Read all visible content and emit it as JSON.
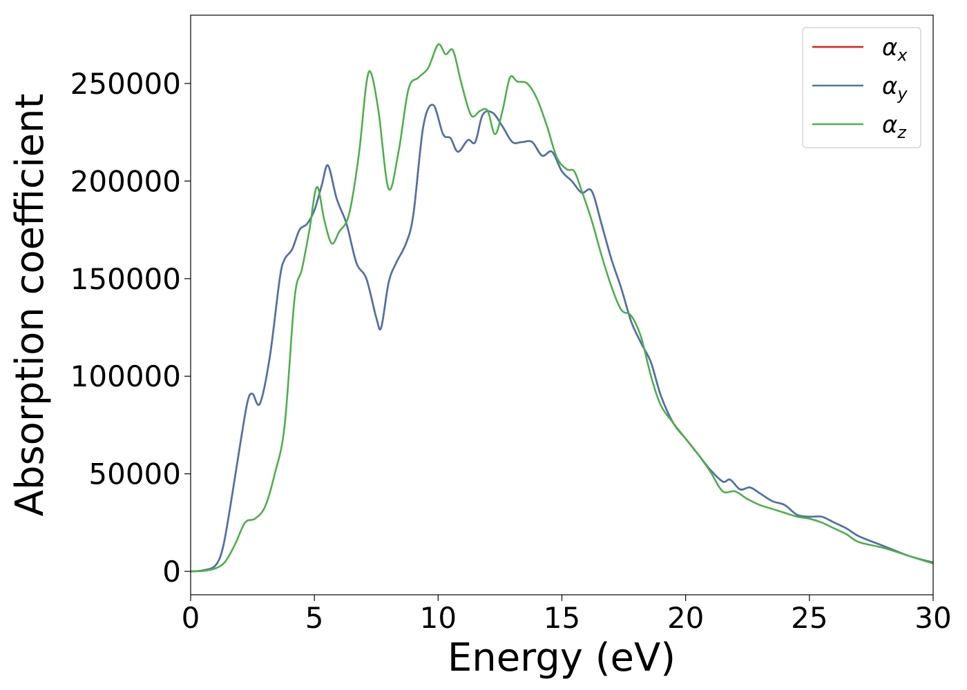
{
  "chart_data": {
    "type": "line",
    "xlabel": "Energy (eV)",
    "ylabel": "Absorption coefficient",
    "xlim": [
      0,
      30
    ],
    "ylim": [
      -12000,
      285000
    ],
    "x_ticks": [
      "0",
      "5",
      "10",
      "15",
      "20",
      "25",
      "30"
    ],
    "x_tick_values": [
      0,
      5,
      10,
      15,
      20,
      25,
      30
    ],
    "y_ticks": [
      "0",
      "50000",
      "100000",
      "150000",
      "200000",
      "250000"
    ],
    "y_tick_values": [
      0,
      50000,
      100000,
      150000,
      200000,
      250000
    ],
    "grid": false,
    "legend": {
      "placement": "top-right"
    },
    "series": [
      {
        "name": "α",
        "subscript": "x",
        "color": "#e41a1c",
        "x": [
          0,
          0.5,
          1.0,
          1.3,
          1.6,
          2.0,
          2.3,
          2.5,
          2.8,
          3.2,
          3.6,
          3.8,
          4.1,
          4.4,
          4.7,
          5.0,
          5.3,
          5.55,
          5.9,
          6.3,
          6.7,
          7.1,
          7.5,
          7.7,
          8.0,
          8.3,
          8.7,
          9.0,
          9.4,
          9.8,
          10.2,
          10.5,
          10.8,
          11.2,
          11.5,
          11.8,
          12.2,
          12.6,
          13.0,
          13.4,
          13.8,
          14.2,
          14.6,
          15.0,
          15.4,
          15.8,
          16.2,
          16.6,
          17.0,
          17.4,
          17.8,
          18.2,
          18.6,
          19.0,
          19.5,
          20.0,
          20.5,
          21.0,
          21.5,
          21.8,
          22.2,
          22.6,
          23.0,
          23.5,
          24.0,
          24.5,
          25.0,
          25.5,
          26.0,
          26.5,
          27.0,
          28.0,
          29.0,
          30.0
        ],
        "y": [
          0,
          500,
          3000,
          12000,
          33000,
          65000,
          87000,
          91000,
          86000,
          110000,
          150000,
          160000,
          165000,
          175000,
          178000,
          185000,
          198000,
          208000,
          191000,
          178000,
          158000,
          150000,
          130000,
          125000,
          148000,
          158000,
          168000,
          183000,
          228000,
          239000,
          224000,
          222000,
          215000,
          221000,
          220000,
          234000,
          235000,
          228000,
          220000,
          220000,
          220000,
          213000,
          215000,
          205000,
          200000,
          194000,
          195000,
          178000,
          160000,
          145000,
          128000,
          117000,
          107000,
          90000,
          76000,
          68000,
          60000,
          52000,
          46000,
          47000,
          42000,
          43000,
          40000,
          36000,
          34000,
          29000,
          28000,
          28000,
          25000,
          22000,
          18000,
          13000,
          8000,
          4500
        ]
      },
      {
        "name": "α",
        "subscript": "y",
        "color": "#4a74ad",
        "x": [
          0,
          0.5,
          1.0,
          1.3,
          1.6,
          2.0,
          2.3,
          2.5,
          2.8,
          3.2,
          3.6,
          3.8,
          4.1,
          4.4,
          4.7,
          5.0,
          5.3,
          5.55,
          5.9,
          6.3,
          6.7,
          7.1,
          7.5,
          7.7,
          8.0,
          8.3,
          8.7,
          9.0,
          9.4,
          9.8,
          10.2,
          10.5,
          10.8,
          11.2,
          11.5,
          11.8,
          12.2,
          12.6,
          13.0,
          13.4,
          13.8,
          14.2,
          14.6,
          15.0,
          15.4,
          15.8,
          16.2,
          16.6,
          17.0,
          17.4,
          17.8,
          18.2,
          18.6,
          19.0,
          19.5,
          20.0,
          20.5,
          21.0,
          21.5,
          21.8,
          22.2,
          22.6,
          23.0,
          23.5,
          24.0,
          24.5,
          25.0,
          25.5,
          26.0,
          26.5,
          27.0,
          28.0,
          29.0,
          30.0
        ],
        "y": [
          0,
          500,
          3000,
          12000,
          33000,
          65000,
          87000,
          91000,
          86000,
          110000,
          150000,
          160000,
          165000,
          175000,
          178000,
          185000,
          198000,
          208000,
          191000,
          178000,
          158000,
          150000,
          130000,
          125000,
          148000,
          158000,
          168000,
          183000,
          228000,
          239000,
          224000,
          222000,
          215000,
          221000,
          220000,
          234000,
          235000,
          228000,
          220000,
          220000,
          220000,
          213000,
          215000,
          205000,
          200000,
          194000,
          195000,
          178000,
          160000,
          145000,
          128000,
          117000,
          107000,
          90000,
          76000,
          68000,
          60000,
          52000,
          46000,
          47000,
          42000,
          43000,
          40000,
          36000,
          34000,
          29000,
          28000,
          28000,
          25000,
          22000,
          18000,
          13000,
          8000,
          4500
        ]
      },
      {
        "name": "α",
        "subscript": "z",
        "color": "#4daf4a",
        "x": [
          0,
          0.5,
          1.0,
          1.4,
          1.8,
          2.2,
          2.6,
          3.0,
          3.4,
          3.8,
          4.2,
          4.5,
          4.8,
          5.1,
          5.4,
          5.7,
          6.0,
          6.4,
          6.8,
          7.1,
          7.3,
          7.6,
          8.0,
          8.4,
          8.8,
          9.2,
          9.6,
          10.0,
          10.3,
          10.6,
          10.9,
          11.2,
          11.4,
          11.7,
          12.0,
          12.3,
          12.6,
          12.9,
          13.2,
          13.6,
          14.0,
          14.4,
          14.8,
          15.2,
          15.5,
          15.8,
          16.2,
          16.6,
          17.0,
          17.4,
          17.8,
          18.2,
          18.6,
          19.0,
          19.5,
          20.0,
          20.5,
          21.0,
          21.5,
          22.0,
          22.5,
          23.0,
          23.5,
          24.0,
          24.5,
          25.0,
          25.5,
          26.0,
          26.5,
          27.0,
          28.0,
          29.0,
          30.0
        ],
        "y": [
          0,
          200,
          1500,
          5000,
          14000,
          25000,
          27000,
          33000,
          50000,
          75000,
          140000,
          155000,
          175000,
          197000,
          180000,
          168000,
          174000,
          183000,
          214000,
          250000,
          255000,
          235000,
          196000,
          215000,
          247000,
          253000,
          258000,
          270000,
          265000,
          267000,
          252000,
          238000,
          233000,
          236000,
          236000,
          224000,
          236000,
          253000,
          251000,
          250000,
          242000,
          228000,
          212000,
          206000,
          205000,
          195000,
          180000,
          162000,
          146000,
          134000,
          131000,
          120000,
          100000,
          85000,
          76000,
          68000,
          60000,
          51000,
          41000,
          41000,
          37000,
          34000,
          32000,
          30000,
          28000,
          27000,
          25000,
          22000,
          19000,
          15000,
          12000,
          8000,
          4000
        ]
      }
    ]
  }
}
